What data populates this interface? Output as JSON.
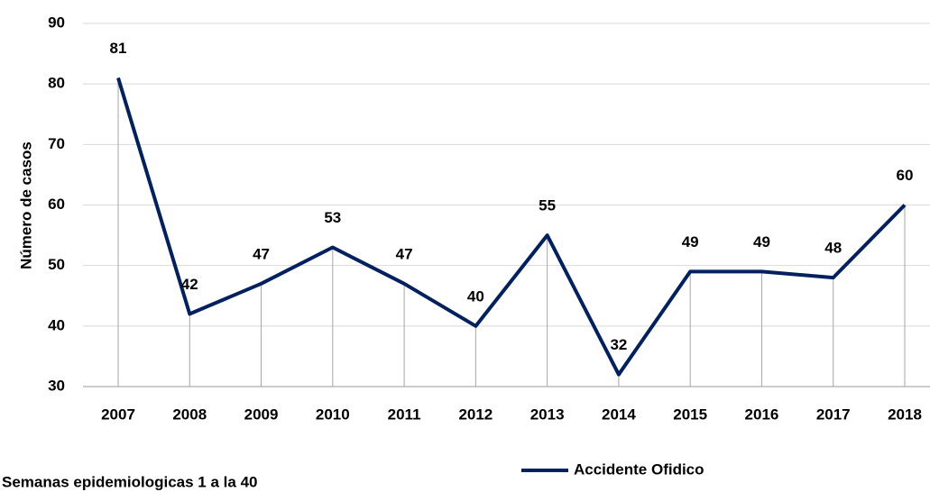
{
  "chart_data": {
    "type": "line",
    "y_label": "Número de casos",
    "footnote": "Semanas epidemiologicas 1 a la 40",
    "categories": [
      "2007",
      "2008",
      "2009",
      "2010",
      "2011",
      "2012",
      "2013",
      "2014",
      "2015",
      "2016",
      "2017",
      "2018"
    ],
    "series": [
      {
        "name": "Accidente Ofidico",
        "color": "#002060",
        "values": [
          81,
          42,
          47,
          53,
          47,
          40,
          55,
          32,
          49,
          49,
          48,
          60
        ]
      }
    ],
    "ylim": [
      30,
      90
    ],
    "yticks": [
      30,
      40,
      50,
      60,
      70,
      80,
      90
    ],
    "grid": true,
    "drop_lines": true,
    "legend": "bottom"
  }
}
